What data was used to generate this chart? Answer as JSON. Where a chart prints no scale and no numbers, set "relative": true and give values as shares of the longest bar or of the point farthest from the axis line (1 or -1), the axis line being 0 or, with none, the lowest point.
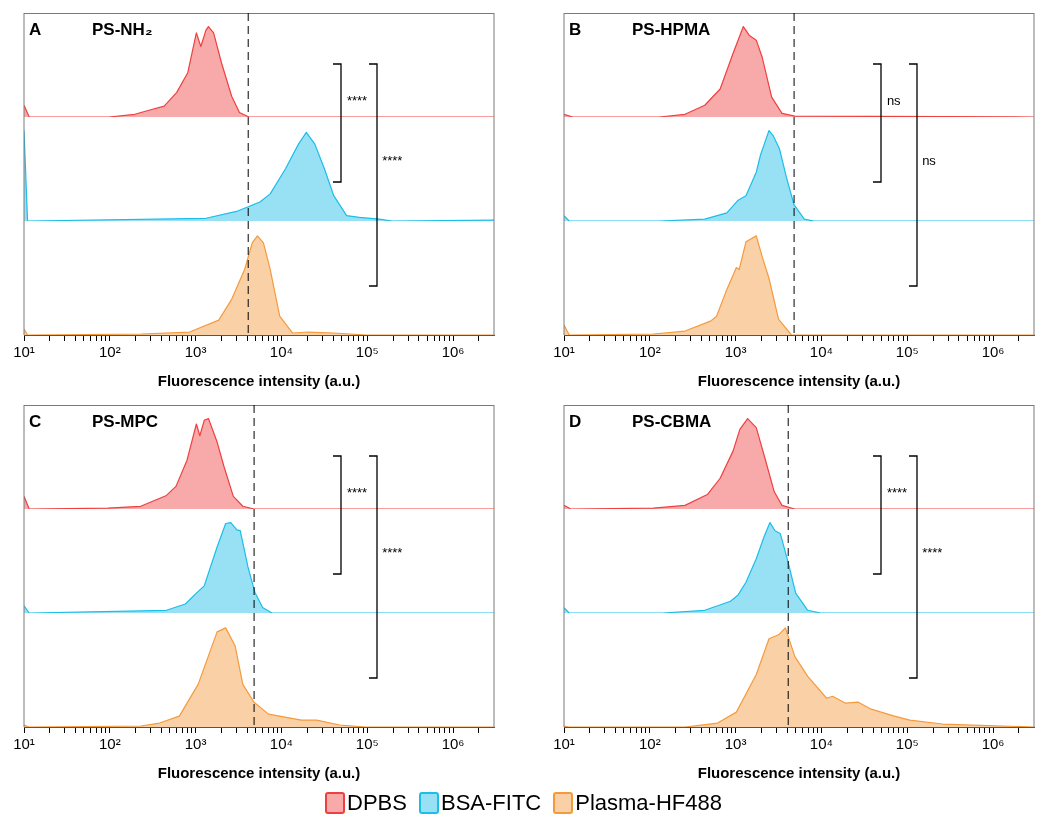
{
  "chart_data": [
    {
      "type": "area",
      "relative": true,
      "log": "x",
      "xlim": [
        10,
        3000000
      ],
      "tick_labels": false,
      "subtitle": "A",
      "title": "PS-NH₂",
      "annotations": [
        "****"
      ],
      "ref_lines": [
        {
          "axis": "x",
          "value": 4100,
          "line_style": "dashed",
          "color": "#000000"
        }
      ],
      "series": [
        {
          "color": "#ef4040",
          "x": [
            10,
            11.5,
            98,
            195,
            300,
            430,
            600,
            810,
            1020,
            1150,
            1320,
            1410,
            1620,
            2000,
            2630,
            3240,
            4170,
            3000000
          ],
          "values": [
            0.13,
            0,
            0,
            0.03,
            0.08,
            0.12,
            0.27,
            0.49,
            0.93,
            0.78,
            0.96,
            1,
            0.93,
            0.6,
            0.23,
            0.05,
            0,
            0
          ]
        }
      ]
    },
    {
      "type": "area",
      "relative": true,
      "log": "x",
      "xlim": [
        10,
        3000000
      ],
      "tick_labels": false,
      "annotations": [
        "****"
      ],
      "ref_lines": [
        {
          "axis": "x",
          "value": 4100,
          "line_style": "dashed",
          "color": "#000000"
        }
      ],
      "series": [
        {
          "color": "#1bbde9",
          "x": [
            10,
            11,
            1320,
            3090,
            5620,
            7400,
            11200,
            15800,
            19500,
            24500,
            31600,
            40700,
            57500,
            81000,
            138000,
            195000,
            3000000
          ],
          "values": [
            1,
            0,
            0.03,
            0.11,
            0.21,
            0.3,
            0.58,
            0.85,
            0.98,
            0.85,
            0.58,
            0.28,
            0.06,
            0.04,
            0.02,
            0,
            0.01
          ]
        }
      ]
    },
    {
      "type": "area",
      "relative": true,
      "log": "x",
      "xlim": [
        10,
        3000000
      ],
      "tick_labels": "x",
      "xlabel": "Fluorescence intensity (a.u.)",
      "ref_lines": [
        {
          "axis": "x",
          "value": 4100,
          "line_style": "dashed",
          "color": "#000000"
        }
      ],
      "xticks": [
        {
          "value": 10,
          "label": "10¹"
        },
        {
          "value": 20,
          "label": null
        },
        {
          "value": 30,
          "label": null
        },
        {
          "value": 40,
          "label": null
        },
        {
          "value": 50,
          "label": null
        },
        {
          "value": 60,
          "label": null
        },
        {
          "value": 70,
          "label": null
        },
        {
          "value": 80,
          "label": null
        },
        {
          "value": 90,
          "label": null
        },
        {
          "value": 100,
          "label": "10²"
        },
        {
          "value": 200,
          "label": null
        },
        {
          "value": 300,
          "label": null
        },
        {
          "value": 400,
          "label": null
        },
        {
          "value": 500,
          "label": null
        },
        {
          "value": 600,
          "label": null
        },
        {
          "value": 700,
          "label": null
        },
        {
          "value": 800,
          "label": null
        },
        {
          "value": 900,
          "label": null
        },
        {
          "value": 1000,
          "label": "10³"
        },
        {
          "value": 2000,
          "label": null
        },
        {
          "value": 3000,
          "label": null
        },
        {
          "value": 4000,
          "label": null
        },
        {
          "value": 5000,
          "label": null
        },
        {
          "value": 6000,
          "label": null
        },
        {
          "value": 7000,
          "label": null
        },
        {
          "value": 8000,
          "label": null
        },
        {
          "value": 9000,
          "label": null
        },
        {
          "value": 10000,
          "label": "10⁴"
        },
        {
          "value": 20000,
          "label": null
        },
        {
          "value": 30000,
          "label": null
        },
        {
          "value": 40000,
          "label": null
        },
        {
          "value": 50000,
          "label": null
        },
        {
          "value": 60000,
          "label": null
        },
        {
          "value": 70000,
          "label": null
        },
        {
          "value": 80000,
          "label": null
        },
        {
          "value": 90000,
          "label": null
        },
        {
          "value": 100000,
          "label": "10⁵"
        },
        {
          "value": 200000,
          "label": null
        },
        {
          "value": 300000,
          "label": null
        },
        {
          "value": 400000,
          "label": null
        },
        {
          "value": 500000,
          "label": null
        },
        {
          "value": 600000,
          "label": null
        },
        {
          "value": 700000,
          "label": null
        },
        {
          "value": 800000,
          "label": null
        },
        {
          "value": 900000,
          "label": null
        },
        {
          "value": 1000000,
          "label": "10⁶"
        },
        {
          "value": 2000000,
          "label": null
        }
      ],
      "series": [
        {
          "color": "#f59a3c",
          "x": [
            10,
            11,
            234,
            850,
            1860,
            2630,
            3720,
            4570,
            5250,
            6170,
            7400,
            9550,
            13500,
            20400,
            40700,
            98000,
            3000000
          ],
          "values": [
            0.06,
            0,
            0.01,
            0.03,
            0.15,
            0.36,
            0.66,
            0.93,
            1,
            0.93,
            0.66,
            0.19,
            0.02,
            0.03,
            0.02,
            0,
            0
          ]
        }
      ]
    },
    {
      "type": "area",
      "relative": true,
      "log": "x",
      "xlim": [
        10,
        3000000
      ],
      "tick_labels": false,
      "subtitle": "B",
      "title": "PS-HPMA",
      "annotations": [
        "ns"
      ],
      "ref_lines": [
        {
          "axis": "x",
          "value": 4800,
          "line_style": "dashed",
          "color": "#000000"
        }
      ],
      "series": [
        {
          "color": "#ef4040",
          "x": [
            10,
            12.6,
            129,
            257,
            437,
            660,
            930,
            1230,
            1450,
            1740,
            2040,
            2630,
            3470,
            4900,
            3000000
          ],
          "values": [
            0.03,
            0,
            0,
            0.03,
            0.13,
            0.31,
            0.7,
            1,
            0.9,
            0.85,
            0.66,
            0.22,
            0.04,
            0.01,
            0
          ]
        }
      ]
    },
    {
      "type": "area",
      "relative": true,
      "log": "x",
      "xlim": [
        10,
        3000000
      ],
      "tick_labels": false,
      "annotations": [
        "ns"
      ],
      "ref_lines": [
        {
          "axis": "x",
          "value": 4800,
          "line_style": "dashed",
          "color": "#000000"
        }
      ],
      "series": [
        {
          "color": "#1bbde9",
          "x": [
            10,
            11.5,
            129,
            437,
            790,
            1070,
            1320,
            1740,
            1950,
            2450,
            2750,
            3240,
            3890,
            4790,
            6310,
            8130,
            3000000
          ],
          "values": [
            0.06,
            0,
            0,
            0.02,
            0.09,
            0.23,
            0.28,
            0.54,
            0.73,
            1,
            0.94,
            0.8,
            0.49,
            0.18,
            0.02,
            0,
            0
          ]
        }
      ]
    },
    {
      "type": "area",
      "relative": true,
      "log": "x",
      "xlim": [
        10,
        3000000
      ],
      "tick_labels": "x",
      "xlabel": "Fluorescence intensity (a.u.)",
      "ref_lines": [
        {
          "axis": "x",
          "value": 4800,
          "line_style": "dashed",
          "color": "#000000"
        }
      ],
      "xticks": [
        {
          "value": 10,
          "label": "10¹"
        },
        {
          "value": 20,
          "label": null
        },
        {
          "value": 30,
          "label": null
        },
        {
          "value": 40,
          "label": null
        },
        {
          "value": 50,
          "label": null
        },
        {
          "value": 60,
          "label": null
        },
        {
          "value": 70,
          "label": null
        },
        {
          "value": 80,
          "label": null
        },
        {
          "value": 90,
          "label": null
        },
        {
          "value": 100,
          "label": "10²"
        },
        {
          "value": 200,
          "label": null
        },
        {
          "value": 300,
          "label": null
        },
        {
          "value": 400,
          "label": null
        },
        {
          "value": 500,
          "label": null
        },
        {
          "value": 600,
          "label": null
        },
        {
          "value": 700,
          "label": null
        },
        {
          "value": 800,
          "label": null
        },
        {
          "value": 900,
          "label": null
        },
        {
          "value": 1000,
          "label": "10³"
        },
        {
          "value": 2000,
          "label": null
        },
        {
          "value": 3000,
          "label": null
        },
        {
          "value": 4000,
          "label": null
        },
        {
          "value": 5000,
          "label": null
        },
        {
          "value": 6000,
          "label": null
        },
        {
          "value": 7000,
          "label": null
        },
        {
          "value": 8000,
          "label": null
        },
        {
          "value": 9000,
          "label": null
        },
        {
          "value": 10000,
          "label": "10⁴"
        },
        {
          "value": 20000,
          "label": null
        },
        {
          "value": 30000,
          "label": null
        },
        {
          "value": 40000,
          "label": null
        },
        {
          "value": 50000,
          "label": null
        },
        {
          "value": 60000,
          "label": null
        },
        {
          "value": 70000,
          "label": null
        },
        {
          "value": 80000,
          "label": null
        },
        {
          "value": 90000,
          "label": null
        },
        {
          "value": 100000,
          "label": "10⁵"
        },
        {
          "value": 200000,
          "label": null
        },
        {
          "value": 300000,
          "label": null
        },
        {
          "value": 400000,
          "label": null
        },
        {
          "value": 500000,
          "label": null
        },
        {
          "value": 600000,
          "label": null
        },
        {
          "value": 700000,
          "label": null
        },
        {
          "value": 800000,
          "label": null
        },
        {
          "value": 900000,
          "label": null
        },
        {
          "value": 1000000,
          "label": "10⁶"
        },
        {
          "value": 2000000,
          "label": null
        }
      ],
      "series": [
        {
          "color": "#f59a3c",
          "x": [
            10,
            11.5,
            110,
            257,
            510,
            600,
            790,
            1020,
            1100,
            1320,
            1740,
            2040,
            2450,
            3160,
            4470,
            3000000
          ],
          "values": [
            0.1,
            0,
            0.01,
            0.04,
            0.14,
            0.19,
            0.46,
            0.68,
            0.66,
            0.94,
            1,
            0.79,
            0.57,
            0.16,
            0,
            0
          ]
        }
      ]
    },
    {
      "type": "area",
      "relative": true,
      "log": "x",
      "xlim": [
        10,
        3000000
      ],
      "tick_labels": false,
      "subtitle": "C",
      "title": "PS-MPC",
      "annotations": [
        "****"
      ],
      "ref_lines": [
        {
          "axis": "x",
          "value": 4800,
          "line_style": "dashed",
          "color": "#000000"
        }
      ],
      "series": [
        {
          "color": "#ef4040",
          "x": [
            10,
            11.5,
            95,
            229,
            457,
            590,
            794,
            1020,
            1120,
            1260,
            1410,
            1780,
            2140,
            2750,
            3550,
            4790,
            3000000
          ],
          "values": [
            0.14,
            0,
            0.01,
            0.03,
            0.15,
            0.25,
            0.54,
            0.94,
            0.81,
            0.98,
            1,
            0.74,
            0.47,
            0.14,
            0.03,
            0,
            0
          ]
        }
      ]
    },
    {
      "type": "area",
      "relative": true,
      "log": "x",
      "xlim": [
        10,
        3000000
      ],
      "tick_labels": false,
      "annotations": [
        "****"
      ],
      "ref_lines": [
        {
          "axis": "x",
          "value": 4800,
          "line_style": "dashed",
          "color": "#000000"
        }
      ],
      "series": [
        {
          "color": "#1bbde9",
          "x": [
            10,
            11.5,
            457,
            760,
            1020,
            1260,
            1780,
            2240,
            2570,
            3020,
            3310,
            4070,
            4900,
            6030,
            7760,
            3000000
          ],
          "values": [
            0.08,
            0,
            0.03,
            0.1,
            0.22,
            0.3,
            0.73,
            0.99,
            1,
            0.92,
            0.91,
            0.51,
            0.23,
            0.06,
            0,
            0
          ]
        }
      ]
    },
    {
      "type": "area",
      "relative": true,
      "log": "x",
      "xlim": [
        10,
        3000000
      ],
      "tick_labels": "x",
      "xlabel": "Fluorescence intensity (a.u.)",
      "ref_lines": [
        {
          "axis": "x",
          "value": 4800,
          "line_style": "dashed",
          "color": "#000000"
        }
      ],
      "xticks": [
        {
          "value": 10,
          "label": "10¹"
        },
        {
          "value": 20,
          "label": null
        },
        {
          "value": 30,
          "label": null
        },
        {
          "value": 40,
          "label": null
        },
        {
          "value": 50,
          "label": null
        },
        {
          "value": 60,
          "label": null
        },
        {
          "value": 70,
          "label": null
        },
        {
          "value": 80,
          "label": null
        },
        {
          "value": 90,
          "label": null
        },
        {
          "value": 100,
          "label": "10²"
        },
        {
          "value": 200,
          "label": null
        },
        {
          "value": 300,
          "label": null
        },
        {
          "value": 400,
          "label": null
        },
        {
          "value": 500,
          "label": null
        },
        {
          "value": 600,
          "label": null
        },
        {
          "value": 700,
          "label": null
        },
        {
          "value": 800,
          "label": null
        },
        {
          "value": 900,
          "label": null
        },
        {
          "value": 1000,
          "label": "10³"
        },
        {
          "value": 2000,
          "label": null
        },
        {
          "value": 3000,
          "label": null
        },
        {
          "value": 4000,
          "label": null
        },
        {
          "value": 5000,
          "label": null
        },
        {
          "value": 6000,
          "label": null
        },
        {
          "value": 7000,
          "label": null
        },
        {
          "value": 8000,
          "label": null
        },
        {
          "value": 9000,
          "label": null
        },
        {
          "value": 10000,
          "label": "10⁴"
        },
        {
          "value": 20000,
          "label": null
        },
        {
          "value": 30000,
          "label": null
        },
        {
          "value": 40000,
          "label": null
        },
        {
          "value": 50000,
          "label": null
        },
        {
          "value": 60000,
          "label": null
        },
        {
          "value": 70000,
          "label": null
        },
        {
          "value": 80000,
          "label": null
        },
        {
          "value": 90000,
          "label": null
        },
        {
          "value": 100000,
          "label": "10⁵"
        },
        {
          "value": 200000,
          "label": null
        },
        {
          "value": 300000,
          "label": null
        },
        {
          "value": 400000,
          "label": null
        },
        {
          "value": 500000,
          "label": null
        },
        {
          "value": 600000,
          "label": null
        },
        {
          "value": 700000,
          "label": null
        },
        {
          "value": 800000,
          "label": null
        },
        {
          "value": 900000,
          "label": null
        },
        {
          "value": 1000000,
          "label": "10⁶"
        },
        {
          "value": 2000000,
          "label": null
        }
      ],
      "series": [
        {
          "color": "#f59a3c",
          "x": [
            10,
            11.5,
            229,
            380,
            646,
            1070,
            1780,
            2240,
            2880,
            3550,
            4790,
            7080,
            17000,
            25700,
            47900,
            95500,
            3000000
          ],
          "values": [
            0.02,
            0,
            0.01,
            0.04,
            0.11,
            0.43,
            0.96,
            1,
            0.82,
            0.43,
            0.25,
            0.13,
            0.07,
            0.07,
            0.02,
            0,
            0
          ]
        }
      ]
    },
    {
      "type": "area",
      "relative": true,
      "log": "x",
      "xlim": [
        10,
        3000000
      ],
      "tick_labels": false,
      "subtitle": "D",
      "title": "PS-CBMA",
      "annotations": [
        "****"
      ],
      "legend": "bottom",
      "ref_lines": [
        {
          "axis": "x",
          "value": 4100,
          "line_style": "dashed",
          "color": "#000000"
        }
      ],
      "series": [
        {
          "name": "DPBS",
          "color": "#ef4040",
          "x": [
            10,
            12,
            110,
            257,
            468,
            660,
            933,
            1120,
            1380,
            1740,
            2140,
            2820,
            3470,
            4900,
            3000000
          ],
          "values": [
            0.04,
            0,
            0.01,
            0.04,
            0.16,
            0.34,
            0.64,
            0.88,
            1,
            0.9,
            0.6,
            0.19,
            0.04,
            0,
            0
          ]
        }
      ]
    },
    {
      "type": "area",
      "relative": true,
      "log": "x",
      "xlim": [
        10,
        3000000
      ],
      "tick_labels": false,
      "annotations": [
        "****"
      ],
      "legend": "bottom",
      "ref_lines": [
        {
          "axis": "x",
          "value": 4100,
          "line_style": "dashed",
          "color": "#000000"
        }
      ],
      "series": [
        {
          "name": "BSA-FITC",
          "color": "#1bbde9",
          "x": [
            10,
            11.5,
            141,
            437,
            870,
            1070,
            1320,
            1740,
            2140,
            2510,
            2880,
            3310,
            4070,
            5010,
            6920,
            9770,
            3000000
          ],
          "values": [
            0.06,
            0,
            0,
            0.03,
            0.13,
            0.2,
            0.34,
            0.6,
            0.84,
            1,
            0.91,
            0.88,
            0.57,
            0.22,
            0.03,
            0,
            0
          ]
        }
      ]
    },
    {
      "type": "area",
      "relative": true,
      "log": "x",
      "xlim": [
        10,
        3000000
      ],
      "tick_labels": "x",
      "xlabel": "Fluorescence intensity (a.u.)",
      "legend": "bottom",
      "ref_lines": [
        {
          "axis": "x",
          "value": 4100,
          "line_style": "dashed",
          "color": "#000000"
        }
      ],
      "xticks": [
        {
          "value": 10,
          "label": "10¹"
        },
        {
          "value": 20,
          "label": null
        },
        {
          "value": 30,
          "label": null
        },
        {
          "value": 40,
          "label": null
        },
        {
          "value": 50,
          "label": null
        },
        {
          "value": 60,
          "label": null
        },
        {
          "value": 70,
          "label": null
        },
        {
          "value": 80,
          "label": null
        },
        {
          "value": 90,
          "label": null
        },
        {
          "value": 100,
          "label": "10²"
        },
        {
          "value": 200,
          "label": null
        },
        {
          "value": 300,
          "label": null
        },
        {
          "value": 400,
          "label": null
        },
        {
          "value": 500,
          "label": null
        },
        {
          "value": 600,
          "label": null
        },
        {
          "value": 700,
          "label": null
        },
        {
          "value": 800,
          "label": null
        },
        {
          "value": 900,
          "label": null
        },
        {
          "value": 1000,
          "label": "10³"
        },
        {
          "value": 2000,
          "label": null
        },
        {
          "value": 3000,
          "label": null
        },
        {
          "value": 4000,
          "label": null
        },
        {
          "value": 5000,
          "label": null
        },
        {
          "value": 6000,
          "label": null
        },
        {
          "value": 7000,
          "label": null
        },
        {
          "value": 8000,
          "label": null
        },
        {
          "value": 9000,
          "label": null
        },
        {
          "value": 10000,
          "label": "10⁴"
        },
        {
          "value": 20000,
          "label": null
        },
        {
          "value": 30000,
          "label": null
        },
        {
          "value": 40000,
          "label": null
        },
        {
          "value": 50000,
          "label": null
        },
        {
          "value": 60000,
          "label": null
        },
        {
          "value": 70000,
          "label": null
        },
        {
          "value": 80000,
          "label": null
        },
        {
          "value": 90000,
          "label": null
        },
        {
          "value": 100000,
          "label": "10⁵"
        },
        {
          "value": 200000,
          "label": null
        },
        {
          "value": 300000,
          "label": null
        },
        {
          "value": 400000,
          "label": null
        },
        {
          "value": 500000,
          "label": null
        },
        {
          "value": 600000,
          "label": null
        },
        {
          "value": 700000,
          "label": null
        },
        {
          "value": 800000,
          "label": null
        },
        {
          "value": 900000,
          "label": null
        },
        {
          "value": 1000000,
          "label": "10⁶"
        },
        {
          "value": 2000000,
          "label": null
        }
      ],
      "series": [
        {
          "name": "Plasma-HF488",
          "color": "#f59a3c",
          "x": [
            10,
            11.5,
            257,
            617,
            1020,
            1740,
            2450,
            3160,
            3800,
            4900,
            6920,
            11500,
            13500,
            19100,
            26900,
            38000,
            70800,
            107000,
            257000,
            3000000
          ],
          "values": [
            0.01,
            0,
            0,
            0.04,
            0.15,
            0.53,
            0.89,
            0.93,
            1,
            0.71,
            0.51,
            0.29,
            0.31,
            0.24,
            0.25,
            0.18,
            0.11,
            0.07,
            0.03,
            0
          ]
        }
      ]
    }
  ]
}
